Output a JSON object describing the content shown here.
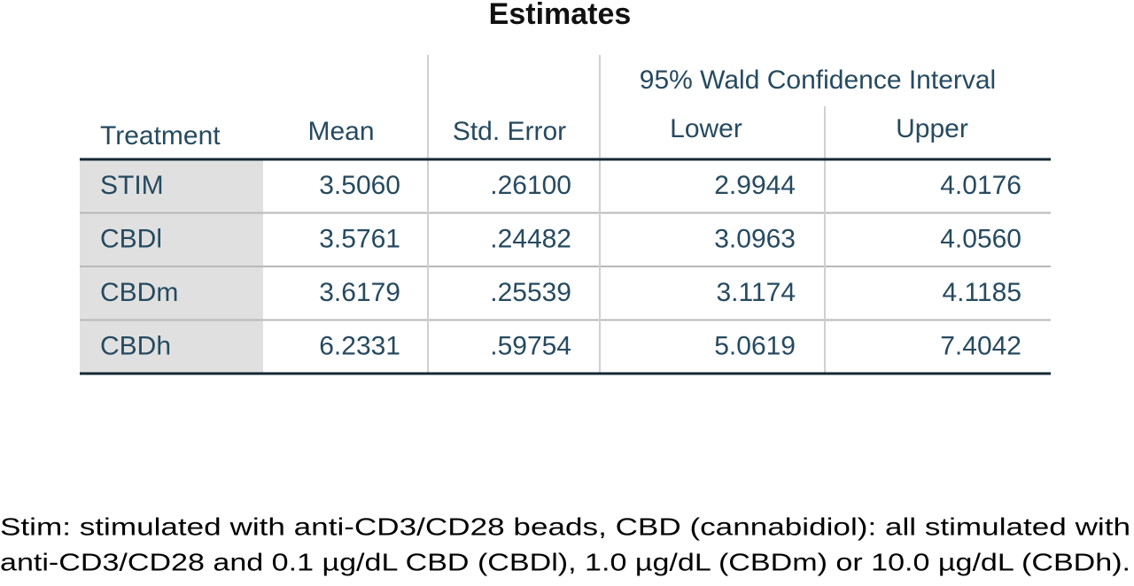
{
  "title": "Estimates",
  "table": {
    "group_header": "95% Wald Confidence Interval",
    "columns": [
      "Treatment",
      "Mean",
      "Std. Error",
      "Lower",
      "Upper"
    ],
    "rows": [
      [
        "STIM",
        "3.5060",
        ".26100",
        "2.9944",
        "4.0176"
      ],
      [
        "CBDl",
        "3.5761",
        ".24482",
        "3.0963",
        "4.0560"
      ],
      [
        "CBDm",
        "3.6179",
        ".25539",
        "3.1174",
        "4.1185"
      ],
      [
        "CBDh",
        "6.2331",
        ".59754",
        "5.0619",
        "7.4042"
      ]
    ]
  },
  "footnote": [
    "Stim: stimulated with anti-CD3/CD28 beads, CBD (cannabidiol): all stimulated with",
    "anti-CD3/CD28 and 0.1 µg/dL CBD (CBDl), 1.0 µg/dL (CBDm) or 10.0 µg/dL (CBDh)."
  ]
}
